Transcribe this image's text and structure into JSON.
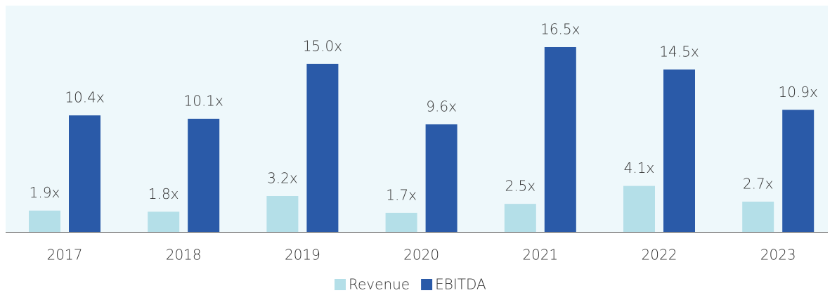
{
  "chart_data": {
    "type": "bar",
    "categories": [
      "2017",
      "2018",
      "2019",
      "2020",
      "2021",
      "2022",
      "2023"
    ],
    "series": [
      {
        "name": "Revenue",
        "color": "#b4dfe8",
        "values": [
          1.9,
          1.8,
          3.2,
          1.7,
          2.5,
          4.1,
          2.7
        ],
        "value_labels": [
          "1.9x",
          "1.8x",
          "3.2x",
          "1.7x",
          "2.5x",
          "4.1x",
          "2.7x"
        ]
      },
      {
        "name": "EBITDA",
        "color": "#2a5aa8",
        "values": [
          10.4,
          10.1,
          15.0,
          9.6,
          16.5,
          14.5,
          10.9
        ],
        "value_labels": [
          "10.4x",
          "10.1x",
          "15.0x",
          "9.6x",
          "16.5x",
          "14.5x",
          "10.9x"
        ]
      }
    ],
    "legend": "bottom"
  }
}
